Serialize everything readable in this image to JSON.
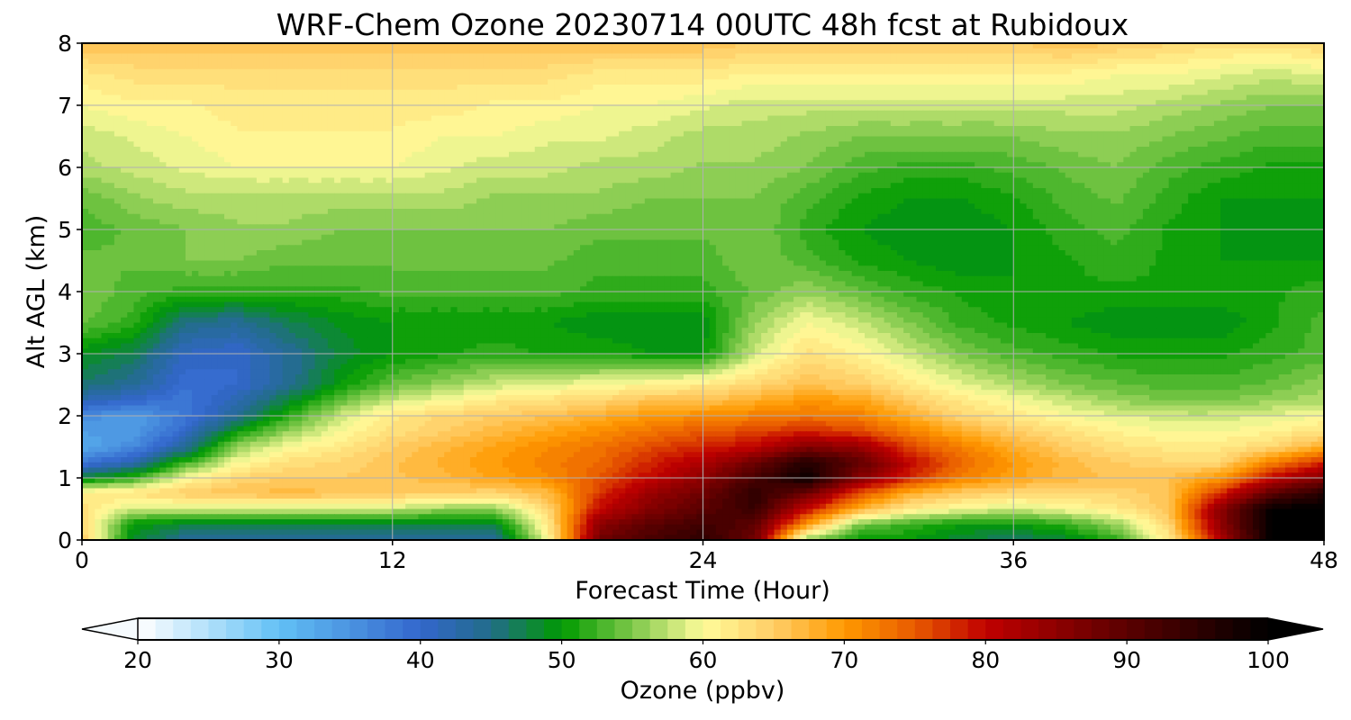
{
  "chart_data": {
    "type": "heatmap",
    "title": "WRF-Chem Ozone  20230714 00UTC 48h fcst at Rubidoux",
    "xlabel": "Forecast Time (Hour)",
    "ylabel": "Alt AGL (km)",
    "xlim": [
      0,
      48
    ],
    "ylim": [
      0,
      8
    ],
    "x_ticks": [
      "0",
      "12",
      "24",
      "36",
      "48"
    ],
    "y_ticks": [
      "0",
      "1",
      "2",
      "3",
      "4",
      "5",
      "6",
      "7",
      "8"
    ],
    "grid": true,
    "x_hours": [
      0,
      2,
      4,
      6,
      8,
      10,
      12,
      14,
      16,
      18,
      20,
      22,
      24,
      26,
      28,
      30,
      32,
      34,
      36,
      38,
      40,
      42,
      44,
      46,
      48
    ],
    "y_km": [
      0,
      0.25,
      0.5,
      0.75,
      1,
      1.25,
      1.5,
      1.75,
      2,
      2.25,
      2.5,
      3,
      3.5,
      4,
      4.5,
      5,
      5.5,
      6,
      6.5,
      7,
      7.5,
      8
    ],
    "values_ppbv": [
      [
        65,
        48,
        44,
        44,
        44,
        44,
        44,
        44,
        44,
        60,
        88,
        92,
        95,
        88,
        55,
        50,
        50,
        48,
        46,
        48,
        52,
        62,
        82,
        100,
        100
      ],
      [
        64,
        50,
        48,
        48,
        48,
        48,
        48,
        48,
        48,
        62,
        85,
        90,
        93,
        90,
        70,
        55,
        52,
        50,
        50,
        52,
        56,
        64,
        85,
        100,
        100
      ],
      [
        63,
        58,
        58,
        58,
        58,
        58,
        58,
        56,
        56,
        64,
        80,
        86,
        90,
        94,
        80,
        68,
        62,
        60,
        58,
        60,
        62,
        66,
        85,
        100,
        100
      ],
      [
        62,
        63,
        65,
        66,
        67,
        66,
        65,
        65,
        64,
        67,
        77,
        84,
        88,
        95,
        88,
        76,
        68,
        65,
        64,
        64,
        64,
        66,
        78,
        90,
        96
      ],
      [
        48,
        52,
        60,
        64,
        65,
        65,
        66,
        67,
        69,
        71,
        75,
        80,
        85,
        92,
        99,
        86,
        78,
        72,
        69,
        67,
        66,
        66,
        70,
        80,
        86
      ],
      [
        38,
        42,
        52,
        60,
        63,
        64,
        66,
        68,
        70,
        72,
        74,
        78,
        82,
        88,
        96,
        90,
        80,
        74,
        70,
        67,
        65,
        64,
        64,
        72,
        78
      ],
      [
        32,
        36,
        44,
        56,
        60,
        62,
        65,
        67,
        69,
        71,
        73,
        76,
        78,
        80,
        86,
        84,
        76,
        72,
        68,
        65,
        63,
        62,
        62,
        64,
        68
      ],
      [
        34,
        34,
        40,
        50,
        56,
        60,
        63,
        65,
        67,
        69,
        71,
        73,
        75,
        76,
        78,
        76,
        72,
        68,
        65,
        63,
        61,
        60,
        60,
        61,
        63
      ],
      [
        36,
        34,
        38,
        44,
        52,
        58,
        62,
        64,
        65,
        66,
        68,
        70,
        71,
        72,
        73,
        72,
        68,
        64,
        62,
        60,
        59,
        58,
        58,
        59,
        60
      ],
      [
        42,
        40,
        38,
        42,
        48,
        54,
        58,
        60,
        62,
        63,
        64,
        66,
        66,
        68,
        70,
        69,
        65,
        62,
        60,
        58,
        56,
        55,
        55,
        56,
        57
      ],
      [
        46,
        44,
        39,
        40,
        44,
        50,
        54,
        56,
        58,
        59,
        60,
        61,
        62,
        64,
        66,
        65,
        62,
        59,
        57,
        55,
        54,
        53,
        53,
        54,
        56
      ],
      [
        49,
        47,
        41,
        40,
        44,
        48,
        50,
        51,
        52,
        51,
        51,
        50,
        50,
        58,
        63,
        61,
        58,
        55,
        53,
        52,
        51,
        51,
        51,
        52,
        53
      ],
      [
        54,
        52,
        45,
        44,
        47,
        49,
        50,
        50,
        50,
        50,
        49,
        49,
        49,
        56,
        60,
        58,
        55,
        52,
        51,
        50,
        49,
        49,
        49,
        51,
        53
      ],
      [
        55,
        53,
        52,
        52,
        52,
        52,
        53,
        53,
        53,
        53,
        52,
        52,
        52,
        54,
        56,
        54,
        52,
        51,
        50,
        51,
        51,
        51,
        51,
        51,
        52
      ],
      [
        54,
        54,
        55,
        55,
        54,
        54,
        54,
        54,
        54,
        54,
        53,
        53,
        53,
        55,
        53,
        51,
        50,
        49,
        50,
        51,
        52,
        51,
        50,
        50,
        50
      ],
      [
        53,
        54,
        55,
        56,
        56,
        55,
        55,
        55,
        55,
        55,
        54,
        54,
        54,
        55,
        52,
        50,
        49,
        49,
        50,
        52,
        53,
        51,
        50,
        49,
        49
      ],
      [
        54,
        56,
        57,
        57,
        57,
        57,
        57,
        57,
        56,
        56,
        56,
        55,
        55,
        55,
        53,
        51,
        50,
        50,
        51,
        53,
        54,
        52,
        50,
        50,
        50
      ],
      [
        57,
        58,
        59,
        60,
        60,
        60,
        60,
        59,
        58,
        58,
        57,
        57,
        56,
        56,
        55,
        53,
        52,
        52,
        53,
        54,
        55,
        53,
        52,
        51,
        51
      ],
      [
        58,
        59,
        60,
        61,
        61,
        61,
        61,
        60,
        60,
        59,
        59,
        58,
        57,
        57,
        56,
        55,
        55,
        55,
        55,
        56,
        56,
        55,
        54,
        53,
        53
      ],
      [
        60,
        61,
        61,
        62,
        62,
        62,
        62,
        62,
        61,
        61,
        60,
        60,
        59,
        58,
        58,
        58,
        58,
        58,
        58,
        58,
        58,
        57,
        56,
        55,
        55
      ],
      [
        62,
        63,
        63,
        63,
        63,
        63,
        63,
        63,
        63,
        63,
        62,
        62,
        62,
        61,
        61,
        61,
        61,
        61,
        61,
        61,
        60,
        60,
        59,
        58,
        59
      ],
      [
        66,
        66,
        66,
        66,
        66,
        66,
        66,
        66,
        66,
        66,
        66,
        66,
        66,
        65,
        65,
        65,
        65,
        65,
        65,
        66,
        65,
        64,
        63,
        63,
        64
      ]
    ],
    "colorbar": {
      "label": "Ozone  (ppbv)",
      "vmin": 20,
      "vmax": 100,
      "ticks": [
        "20",
        "30",
        "40",
        "50",
        "60",
        "70",
        "80",
        "90",
        "100"
      ],
      "extend": "both",
      "color_stops": [
        {
          "v": 20,
          "c": "#ffffff"
        },
        {
          "v": 30,
          "c": "#62c0f5"
        },
        {
          "v": 40,
          "c": "#3366cc"
        },
        {
          "v": 45,
          "c": "#226d88"
        },
        {
          "v": 50,
          "c": "#009a00"
        },
        {
          "v": 55,
          "c": "#7ec84a"
        },
        {
          "v": 60,
          "c": "#fffc9a"
        },
        {
          "v": 65,
          "c": "#ffcd66"
        },
        {
          "v": 70,
          "c": "#ff9900"
        },
        {
          "v": 75,
          "c": "#e85a00"
        },
        {
          "v": 80,
          "c": "#c00000"
        },
        {
          "v": 90,
          "c": "#5a0000"
        },
        {
          "v": 100,
          "c": "#000000"
        }
      ]
    }
  }
}
